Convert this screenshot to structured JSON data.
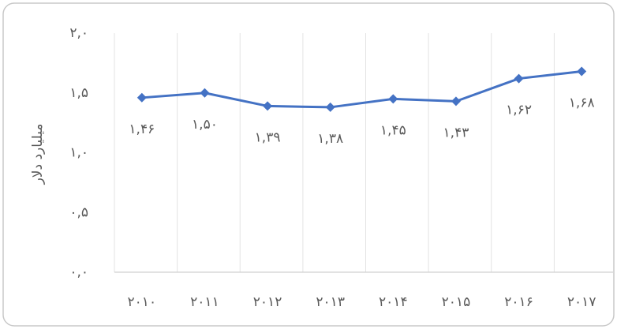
{
  "chart_data": {
    "type": "line",
    "y_label": "میلیارد دلار",
    "categories": [
      "۲۰۱۰",
      "۲۰۱۱",
      "۲۰۱۲",
      "۲۰۱۳",
      "۲۰۱۴",
      "۲۰۱۵",
      "۲۰۱۶",
      "۲۰۱۷"
    ],
    "series": [
      {
        "color": "#4472c4",
        "values": [
          1.46,
          1.5,
          1.39,
          1.38,
          1.45,
          1.43,
          1.62,
          1.68
        ],
        "value_labels": [
          "۱,۴۶",
          "۱,۵۰",
          "۱,۳۹",
          "۱,۳۸",
          "۱,۴۵",
          "۱,۴۳",
          "۱,۶۲",
          "۱,۶۸"
        ]
      }
    ],
    "ylim": [
      0,
      2
    ],
    "yticks": [
      {
        "value": 0,
        "label": "۰,۰"
      },
      {
        "value": 0.5,
        "label": "۰,۵"
      },
      {
        "value": 1,
        "label": "۱,۰"
      },
      {
        "value": 1.5,
        "label": "۱,۵"
      },
      {
        "value": 2,
        "label": "۲,۰"
      }
    ],
    "grid": true
  }
}
